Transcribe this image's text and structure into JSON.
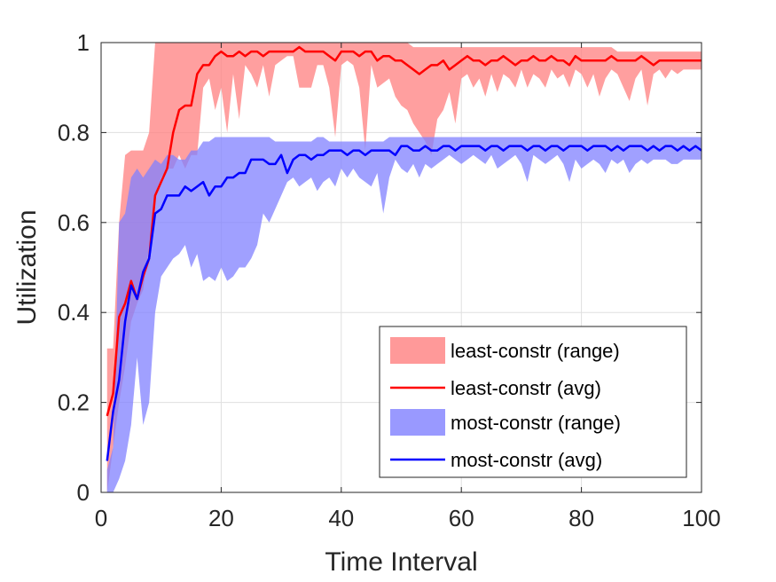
{
  "chart_data": {
    "type": "line",
    "title": "",
    "xlabel": "Time Interval",
    "ylabel": "Utilization",
    "xlim": [
      0,
      100
    ],
    "ylim": [
      0,
      1
    ],
    "x_ticks": [
      "0",
      "20",
      "40",
      "60",
      "80",
      "100"
    ],
    "y_ticks": [
      "0",
      "0.2",
      "0.4",
      "0.6",
      "0.8",
      "1"
    ],
    "grid": true,
    "legend_position": "bottom-right",
    "colors": {
      "least_range": "#ff7f7f",
      "least_avg": "#ff0000",
      "most_range": "#8080ff",
      "most_avg": "#0000ff"
    },
    "x": [
      1,
      2,
      3,
      4,
      5,
      6,
      7,
      8,
      9,
      10,
      11,
      12,
      13,
      14,
      15,
      16,
      17,
      18,
      19,
      20,
      21,
      22,
      23,
      24,
      25,
      26,
      27,
      28,
      29,
      30,
      31,
      32,
      33,
      34,
      35,
      36,
      37,
      38,
      39,
      40,
      41,
      42,
      43,
      44,
      45,
      46,
      47,
      48,
      49,
      50,
      51,
      52,
      53,
      54,
      55,
      56,
      57,
      58,
      59,
      60,
      61,
      62,
      63,
      64,
      65,
      66,
      67,
      68,
      69,
      70,
      71,
      72,
      73,
      74,
      75,
      76,
      77,
      78,
      79,
      80,
      81,
      82,
      83,
      84,
      85,
      86,
      87,
      88,
      89,
      90,
      91,
      92,
      93,
      94,
      95,
      96,
      97,
      98,
      99,
      100
    ],
    "series": [
      {
        "name": "least-constr (range)",
        "kind": "range",
        "lower": [
          0.0,
          0.1,
          0.2,
          0.28,
          0.38,
          0.42,
          0.45,
          0.55,
          0.65,
          0.7,
          0.72,
          0.72,
          0.75,
          0.72,
          0.75,
          0.75,
          0.9,
          0.92,
          0.85,
          0.9,
          0.8,
          0.93,
          0.83,
          0.95,
          0.93,
          0.9,
          0.95,
          0.88,
          0.95,
          0.96,
          0.97,
          0.97,
          0.9,
          0.9,
          0.9,
          0.95,
          0.95,
          0.9,
          0.79,
          0.95,
          0.96,
          0.95,
          0.9,
          0.76,
          0.95,
          0.9,
          0.91,
          0.92,
          0.88,
          0.86,
          0.85,
          0.82,
          0.8,
          0.78,
          0.75,
          0.83,
          0.85,
          0.89,
          0.82,
          0.92,
          0.93,
          0.9,
          0.92,
          0.88,
          0.93,
          0.89,
          0.93,
          0.92,
          0.9,
          0.94,
          0.9,
          0.93,
          0.92,
          0.9,
          0.94,
          0.92,
          0.93,
          0.9,
          0.94,
          0.93,
          0.9,
          0.93,
          0.88,
          0.92,
          0.94,
          0.93,
          0.9,
          0.87,
          0.92,
          0.94,
          0.86,
          0.93,
          0.94,
          0.92,
          0.94,
          0.93,
          0.94,
          0.94,
          0.94,
          0.94
        ],
        "upper": [
          0.32,
          0.32,
          0.6,
          0.75,
          0.76,
          0.76,
          0.76,
          0.8,
          1.0,
          1.0,
          1.0,
          1.0,
          1.0,
          1.0,
          1.0,
          1.0,
          1.0,
          1.0,
          1.0,
          1.0,
          1.0,
          1.0,
          1.0,
          1.0,
          1.0,
          1.0,
          1.0,
          1.0,
          1.0,
          1.0,
          1.0,
          1.0,
          1.0,
          1.0,
          1.0,
          1.0,
          1.0,
          1.0,
          1.0,
          1.0,
          1.0,
          1.0,
          1.0,
          1.0,
          1.0,
          1.0,
          1.0,
          1.0,
          1.0,
          1.0,
          1.0,
          0.99,
          0.99,
          0.99,
          0.99,
          0.99,
          0.99,
          0.99,
          0.99,
          0.99,
          0.99,
          0.99,
          0.99,
          0.99,
          0.99,
          0.99,
          0.99,
          0.99,
          0.99,
          0.99,
          0.99,
          0.99,
          0.99,
          0.99,
          0.99,
          0.99,
          0.99,
          0.99,
          0.99,
          0.99,
          0.99,
          0.99,
          0.99,
          0.99,
          0.99,
          0.98,
          0.98,
          0.98,
          0.98,
          0.98,
          0.98,
          0.98,
          0.98,
          0.98,
          0.98,
          0.98,
          0.98,
          0.98,
          0.98,
          0.98
        ]
      },
      {
        "name": "least-constr (avg)",
        "kind": "line",
        "values": [
          0.17,
          0.22,
          0.39,
          0.42,
          0.47,
          0.43,
          0.48,
          0.52,
          0.66,
          0.69,
          0.72,
          0.8,
          0.85,
          0.86,
          0.86,
          0.93,
          0.95,
          0.95,
          0.97,
          0.98,
          0.97,
          0.97,
          0.98,
          0.97,
          0.98,
          0.98,
          0.97,
          0.98,
          0.98,
          0.98,
          0.98,
          0.98,
          0.99,
          0.98,
          0.98,
          0.98,
          0.98,
          0.97,
          0.96,
          0.98,
          0.98,
          0.98,
          0.97,
          0.98,
          0.98,
          0.96,
          0.97,
          0.97,
          0.96,
          0.96,
          0.95,
          0.94,
          0.93,
          0.94,
          0.95,
          0.95,
          0.96,
          0.94,
          0.95,
          0.96,
          0.97,
          0.96,
          0.96,
          0.95,
          0.96,
          0.96,
          0.97,
          0.96,
          0.95,
          0.96,
          0.96,
          0.97,
          0.96,
          0.96,
          0.97,
          0.96,
          0.96,
          0.95,
          0.97,
          0.96,
          0.96,
          0.96,
          0.96,
          0.96,
          0.97,
          0.96,
          0.96,
          0.96,
          0.96,
          0.97,
          0.96,
          0.95,
          0.96,
          0.96,
          0.96,
          0.96,
          0.96,
          0.96,
          0.96,
          0.96
        ]
      },
      {
        "name": "most-constr (range)",
        "kind": "range",
        "lower": [
          0.0,
          0.0,
          0.03,
          0.07,
          0.15,
          0.3,
          0.15,
          0.2,
          0.4,
          0.48,
          0.5,
          0.52,
          0.53,
          0.55,
          0.5,
          0.53,
          0.47,
          0.48,
          0.47,
          0.5,
          0.47,
          0.48,
          0.5,
          0.5,
          0.52,
          0.55,
          0.62,
          0.6,
          0.63,
          0.66,
          0.69,
          0.7,
          0.68,
          0.69,
          0.7,
          0.67,
          0.69,
          0.7,
          0.68,
          0.72,
          0.7,
          0.72,
          0.7,
          0.69,
          0.68,
          0.71,
          0.62,
          0.7,
          0.74,
          0.72,
          0.71,
          0.73,
          0.7,
          0.73,
          0.72,
          0.73,
          0.74,
          0.75,
          0.74,
          0.73,
          0.74,
          0.75,
          0.74,
          0.73,
          0.75,
          0.72,
          0.73,
          0.74,
          0.75,
          0.73,
          0.69,
          0.75,
          0.74,
          0.73,
          0.74,
          0.75,
          0.73,
          0.69,
          0.74,
          0.72,
          0.73,
          0.74,
          0.73,
          0.71,
          0.74,
          0.73,
          0.74,
          0.71,
          0.73,
          0.74,
          0.73,
          0.74,
          0.74,
          0.74,
          0.73,
          0.73,
          0.74,
          0.74,
          0.74,
          0.74
        ],
        "upper": [
          0.05,
          0.1,
          0.6,
          0.62,
          0.7,
          0.72,
          0.7,
          0.72,
          0.74,
          0.73,
          0.75,
          0.75,
          0.74,
          0.74,
          0.76,
          0.76,
          0.78,
          0.78,
          0.79,
          0.79,
          0.79,
          0.79,
          0.79,
          0.79,
          0.79,
          0.79,
          0.79,
          0.79,
          0.78,
          0.78,
          0.78,
          0.78,
          0.78,
          0.78,
          0.78,
          0.79,
          0.79,
          0.78,
          0.78,
          0.78,
          0.78,
          0.78,
          0.78,
          0.78,
          0.78,
          0.78,
          0.78,
          0.79,
          0.79,
          0.79,
          0.79,
          0.79,
          0.79,
          0.79,
          0.79,
          0.79,
          0.79,
          0.79,
          0.79,
          0.79,
          0.79,
          0.79,
          0.79,
          0.79,
          0.79,
          0.79,
          0.79,
          0.79,
          0.79,
          0.79,
          0.79,
          0.79,
          0.79,
          0.79,
          0.79,
          0.79,
          0.79,
          0.79,
          0.79,
          0.79,
          0.79,
          0.79,
          0.79,
          0.79,
          0.79,
          0.79,
          0.79,
          0.79,
          0.79,
          0.79,
          0.79,
          0.79,
          0.79,
          0.79,
          0.79,
          0.79,
          0.79,
          0.79,
          0.79,
          0.79
        ]
      },
      {
        "name": "most-constr (avg)",
        "kind": "line",
        "values": [
          0.07,
          0.18,
          0.25,
          0.38,
          0.46,
          0.43,
          0.49,
          0.52,
          0.62,
          0.63,
          0.66,
          0.66,
          0.66,
          0.68,
          0.67,
          0.68,
          0.69,
          0.66,
          0.68,
          0.68,
          0.7,
          0.7,
          0.71,
          0.71,
          0.74,
          0.74,
          0.74,
          0.73,
          0.73,
          0.75,
          0.71,
          0.74,
          0.75,
          0.75,
          0.74,
          0.75,
          0.75,
          0.76,
          0.76,
          0.76,
          0.75,
          0.76,
          0.76,
          0.75,
          0.76,
          0.76,
          0.76,
          0.76,
          0.75,
          0.77,
          0.77,
          0.76,
          0.76,
          0.77,
          0.76,
          0.76,
          0.77,
          0.77,
          0.76,
          0.77,
          0.77,
          0.77,
          0.77,
          0.76,
          0.77,
          0.77,
          0.76,
          0.77,
          0.77,
          0.77,
          0.76,
          0.77,
          0.77,
          0.76,
          0.77,
          0.77,
          0.76,
          0.77,
          0.77,
          0.77,
          0.76,
          0.77,
          0.77,
          0.77,
          0.76,
          0.77,
          0.76,
          0.77,
          0.77,
          0.77,
          0.76,
          0.77,
          0.76,
          0.77,
          0.77,
          0.76,
          0.77,
          0.76,
          0.77,
          0.76
        ]
      }
    ]
  }
}
